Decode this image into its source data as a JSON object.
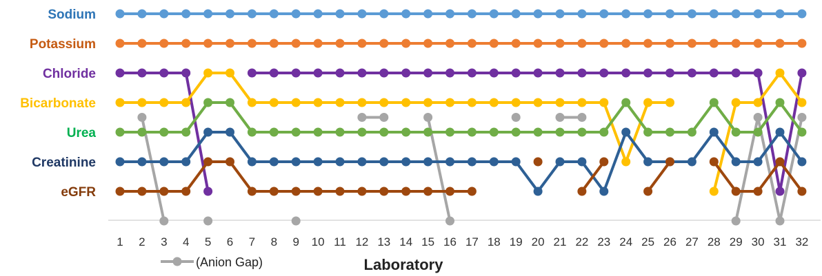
{
  "chart_data": {
    "type": "line",
    "title": "",
    "xlabel": "Laboratory",
    "ylabel": "",
    "x": [
      1,
      2,
      3,
      4,
      5,
      6,
      7,
      8,
      9,
      10,
      11,
      12,
      13,
      14,
      15,
      16,
      17,
      18,
      19,
      20,
      21,
      22,
      23,
      24,
      25,
      26,
      27,
      28,
      29,
      30,
      31,
      32
    ],
    "xlim": [
      1,
      32
    ],
    "grid": false,
    "rows": [
      {
        "label": "Sodium",
        "color": "#2e75b6"
      },
      {
        "label": "Potassium",
        "color": "#c55a11"
      },
      {
        "label": "Chloride",
        "color": "#7030a0"
      },
      {
        "label": "Bicarbonate",
        "color": "#ffc000"
      },
      {
        "label": "Urea",
        "color": "#00b050"
      },
      {
        "label": "Creatinine",
        "color": "#1f3864"
      },
      {
        "label": "eGFR",
        "color": "#843c0c"
      }
    ],
    "row_positions": {
      "Sodium": 0,
      "Potassium": 1,
      "Chloride": 2,
      "Bicarbonate": 3,
      "Urea": 4,
      "Creatinine": 5,
      "eGFR": 6
    },
    "legend": {
      "label": "(Anion Gap)",
      "position": "bottom-left"
    },
    "series": [
      {
        "key": "anion_gap",
        "color": "#a6a6a6",
        "values": [
          null,
          3.5,
          7,
          null,
          7,
          null,
          null,
          null,
          7,
          null,
          null,
          3.5,
          3.5,
          null,
          3.5,
          7,
          null,
          null,
          3.5,
          null,
          3.5,
          3.5,
          null,
          null,
          null,
          null,
          null,
          null,
          7,
          3.5,
          7,
          3.5
        ]
      },
      {
        "key": "sodium",
        "color": "#5b9bd5",
        "values": [
          0,
          0,
          0,
          0,
          0,
          0,
          0,
          0,
          0,
          0,
          0,
          0,
          0,
          0,
          0,
          0,
          0,
          0,
          0,
          0,
          0,
          0,
          0,
          0,
          0,
          0,
          0,
          0,
          0,
          0,
          0,
          0
        ]
      },
      {
        "key": "potassium",
        "color": "#ed7d31",
        "values": [
          1,
          1,
          1,
          1,
          1,
          1,
          1,
          1,
          1,
          1,
          1,
          1,
          1,
          1,
          1,
          1,
          1,
          1,
          1,
          1,
          1,
          1,
          1,
          1,
          1,
          1,
          1,
          1,
          1,
          1,
          1,
          1
        ]
      },
      {
        "key": "chloride",
        "color": "#7030a0",
        "values": [
          2,
          2,
          2,
          2,
          6,
          null,
          2,
          2,
          2,
          2,
          2,
          2,
          2,
          2,
          2,
          2,
          2,
          2,
          2,
          2,
          2,
          2,
          2,
          2,
          2,
          2,
          2,
          2,
          2,
          2,
          6,
          2
        ]
      },
      {
        "key": "bicarbonate",
        "color": "#ffc000",
        "values": [
          3,
          3,
          3,
          3,
          2,
          2,
          3,
          3,
          3,
          3,
          3,
          3,
          3,
          3,
          3,
          3,
          3,
          3,
          3,
          3,
          3,
          3,
          3,
          5,
          3,
          3,
          null,
          6,
          3,
          3,
          2,
          3
        ]
      },
      {
        "key": "urea",
        "color": "#70ad47",
        "values": [
          4,
          4,
          4,
          4,
          3,
          3,
          4,
          4,
          4,
          4,
          4,
          4,
          4,
          4,
          4,
          4,
          4,
          4,
          4,
          4,
          4,
          4,
          4,
          3,
          4,
          4,
          4,
          3,
          4,
          4,
          3,
          4
        ]
      },
      {
        "key": "creatinine",
        "color": "#2e6095",
        "values": [
          5,
          5,
          5,
          5,
          4,
          4,
          5,
          5,
          5,
          5,
          5,
          5,
          5,
          5,
          5,
          5,
          5,
          5,
          5,
          6,
          5,
          5,
          6,
          4,
          5,
          5,
          5,
          4,
          5,
          5,
          4,
          5
        ]
      },
      {
        "key": "egfr",
        "color": "#9e480e",
        "values": [
          6,
          6,
          6,
          6,
          5,
          5,
          6,
          6,
          6,
          6,
          6,
          6,
          6,
          6,
          6,
          6,
          6,
          null,
          null,
          5,
          null,
          6,
          5,
          null,
          6,
          5,
          null,
          5,
          6,
          6,
          5,
          6
        ]
      }
    ]
  }
}
